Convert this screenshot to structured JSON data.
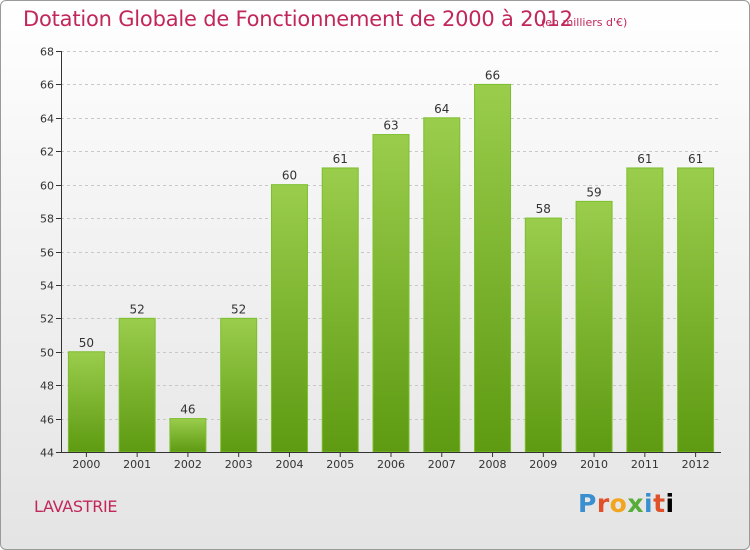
{
  "header": {
    "title": "Dotation Globale de Fonctionnement de 2000 à 2012",
    "unit": "(en milliers d'€)"
  },
  "footer": {
    "commune": "LAVASTRIE",
    "brand": [
      "P",
      "r",
      "o",
      "x",
      "i",
      "t",
      "i"
    ]
  },
  "colors": {
    "bar_top": "#9acd4c",
    "bar_bottom": "#5e9a12",
    "title": "#c2275a"
  },
  "chart_data": {
    "type": "bar",
    "title": "Dotation Globale de Fonctionnement de 2000 à 2012",
    "xlabel": "",
    "ylabel": "",
    "categories": [
      "2000",
      "2001",
      "2002",
      "2003",
      "2004",
      "2005",
      "2006",
      "2007",
      "2008",
      "2009",
      "2010",
      "2011",
      "2012"
    ],
    "values": [
      50,
      52,
      46,
      52,
      60,
      61,
      63,
      64,
      66,
      58,
      59,
      61,
      61
    ],
    "ylim": [
      44,
      68
    ],
    "yticks": [
      44,
      46,
      48,
      50,
      52,
      54,
      56,
      58,
      60,
      62,
      64,
      66,
      68
    ],
    "grid": true
  }
}
